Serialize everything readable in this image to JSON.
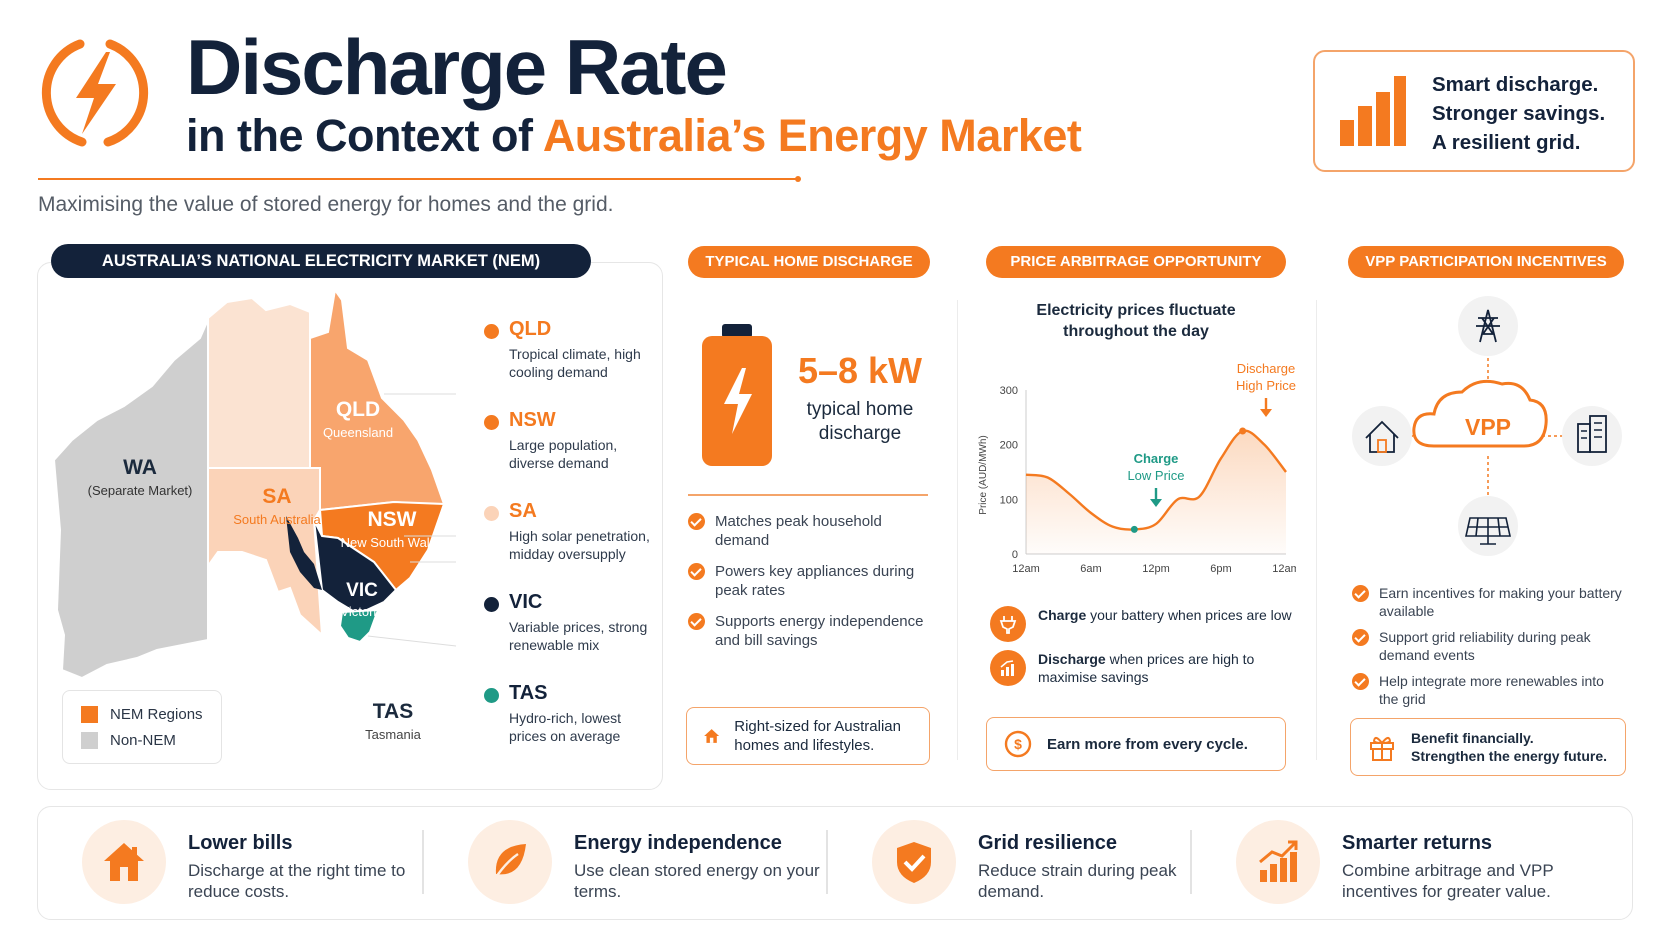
{
  "header": {
    "title": "Discharge Rate",
    "subtitle_prefix": "in the Context of ",
    "subtitle_highlight": "Australia’s Energy Market",
    "tagline": "Maximising the value of stored energy for homes and the grid.",
    "side_lines": [
      "Smart discharge.",
      "Stronger savings.",
      "A resilient grid."
    ]
  },
  "nem": {
    "heading": "AUSTRALIA’S NATIONAL ELECTRICITY MARKET (NEM)",
    "map_labels": {
      "wa": "WA",
      "wa_sub": "(Separate Market)",
      "sa": "SA",
      "sa_sub": "South Australia",
      "qld": "QLD",
      "qld_sub": "Queensland",
      "nsw": "NSW",
      "nsw_sub": "New South Wales",
      "vic": "VIC",
      "vic_sub": "Victoria",
      "tas": "TAS",
      "tas_sub": "Tasmania"
    },
    "regions": [
      {
        "name": "QLD",
        "desc": "Tropical climate, high cooling demand",
        "color": "#f47a20"
      },
      {
        "name": "NSW",
        "desc": "Large population, diverse demand",
        "color": "#f47a20"
      },
      {
        "name": "SA",
        "desc": "High solar penetration, midday oversupply",
        "color": "#fbd3b8"
      },
      {
        "name": "VIC",
        "desc": "Variable prices, strong renewable mix",
        "color": "#13223a"
      },
      {
        "name": "TAS",
        "desc": "Hydro-rich, lowest prices on average",
        "color": "#1f9a86"
      }
    ],
    "legend": [
      {
        "label": "NEM Regions",
        "color": "#f47a20"
      },
      {
        "label": "Non-NEM",
        "color": "#cfcfcf"
      }
    ]
  },
  "home": {
    "heading": "TYPICAL HOME DISCHARGE",
    "value": "5–8 kW",
    "value_label_1": "typical home",
    "value_label_2": "discharge",
    "points": [
      "Matches peak household demand",
      "Powers key appliances during peak rates",
      "Supports energy independence and bill savings"
    ],
    "callout": "Right-sized for Australian homes and lifestyles."
  },
  "arbitrage": {
    "heading": "PRICE ARBITRAGE OPPORTUNITY",
    "chart_title_1": "Electricity prices fluctuate",
    "chart_title_2": "throughout the day",
    "discharge_label_1": "Discharge",
    "discharge_label_2": "High Price",
    "charge_label_1": "Charge",
    "charge_label_2": "Low Price",
    "charge_bold": "Charge",
    "charge_text": " your battery when prices are low",
    "discharge_bold": "Discharge",
    "discharge_text": " when prices are high to maximise savings",
    "callout": "Earn more from every cycle."
  },
  "chart_data": {
    "type": "line",
    "title": "Electricity prices fluctuate throughout the day",
    "ylabel": "Price (AUD/MWh)",
    "xticks": [
      "12am",
      "6am",
      "12pm",
      "6pm",
      "12am"
    ],
    "yticks": [
      0,
      100,
      200,
      300
    ],
    "ylim": [
      0,
      300
    ],
    "xlim": [
      0,
      24
    ],
    "grid": false,
    "series": [
      {
        "x": [
          0,
          2,
          4,
          6,
          8,
          10,
          12,
          14,
          16,
          18,
          20,
          22,
          24
        ],
        "values": [
          145,
          140,
          110,
          75,
          50,
          45,
          55,
          100,
          105,
          175,
          225,
          200,
          150
        ]
      }
    ],
    "annotations": [
      {
        "text": "Charge Low Price",
        "x": 10,
        "y": 45
      },
      {
        "text": "Discharge High Price",
        "x": 20,
        "y": 225
      }
    ]
  },
  "vpp": {
    "heading": "VPP PARTICIPATION INCENTIVES",
    "center": "VPP",
    "points": [
      "Earn incentives for making your battery available",
      "Support grid reliability during peak demand events",
      "Help integrate more renewables into the grid"
    ],
    "callout_1": "Benefit financially.",
    "callout_2": "Strengthen the energy future."
  },
  "benefits": [
    {
      "title": "Lower bills",
      "desc": "Discharge at the right time to reduce costs."
    },
    {
      "title": "Energy independence",
      "desc": "Use clean stored energy on your terms."
    },
    {
      "title": "Grid resilience",
      "desc": "Reduce strain during peak demand."
    },
    {
      "title": "Smarter returns",
      "desc": "Combine arbitrage and VPP incentives for greater value."
    }
  ],
  "colors": {
    "accent": "#f47a20",
    "navy": "#13223a",
    "teal": "#1f9a86",
    "grey": "#cfcfcf"
  }
}
